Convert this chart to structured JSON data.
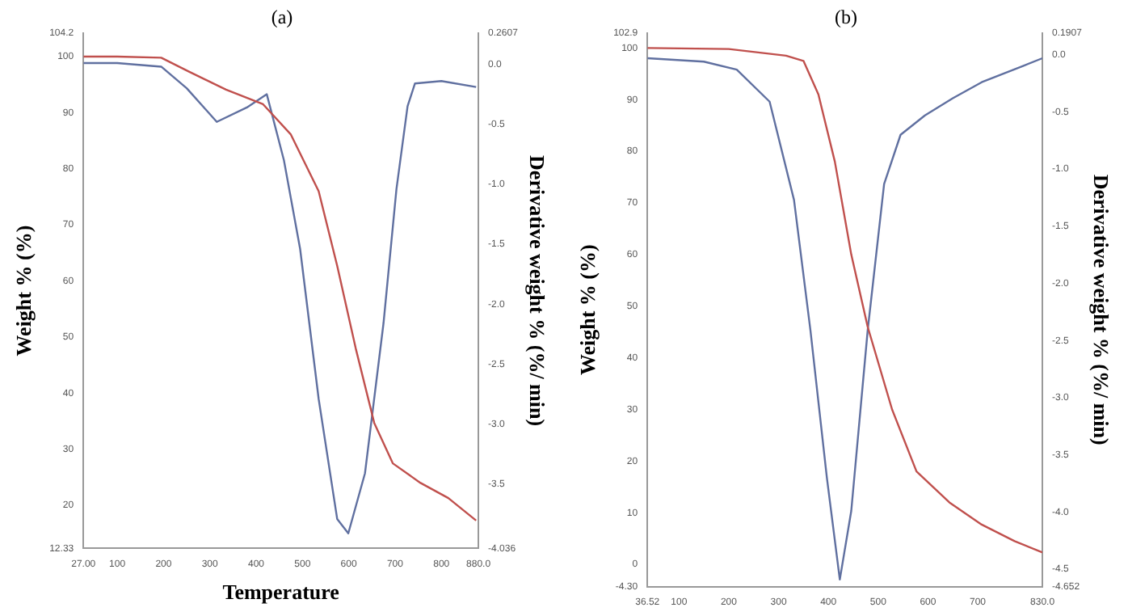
{
  "chart_data": [
    {
      "type": "line",
      "title": "(a)",
      "xlabel": "Temperature",
      "ylabel": "Weight % (%)",
      "y2label": "Derivative weight % (%/ min)",
      "grid": false,
      "legend": false,
      "marker": "none",
      "line_style": "solid",
      "xlim": [
        27,
        880
      ],
      "xticks": [
        {
          "value": 27,
          "label": "27.00"
        },
        100,
        200,
        300,
        400,
        500,
        600,
        700,
        800,
        {
          "value": 880,
          "label": "880.0"
        }
      ],
      "ylim": [
        12.33,
        104.2
      ],
      "yticks": [
        {
          "value": 12.33,
          "label": "12.33"
        },
        20,
        30,
        40,
        50,
        60,
        70,
        80,
        90,
        100,
        {
          "value": 104.2,
          "label": "104.2"
        }
      ],
      "y2lim": [
        -4.036,
        0.2607
      ],
      "y2ticks": [
        {
          "value": -4.036,
          "label": "-4.036"
        },
        -3.5,
        {
          "value": -3,
          "label": "-3.0"
        },
        -2.5,
        {
          "value": -2,
          "label": "-2.0"
        },
        -1.5,
        {
          "value": -1,
          "label": "-1.0"
        },
        -0.5,
        {
          "value": 0,
          "label": "0.0"
        },
        {
          "value": 0.2607,
          "label": "0.2607"
        }
      ],
      "series": [
        {
          "color": "#c0504d",
          "x": [
            27,
            100,
            195,
            255,
            335,
            415,
            475,
            535,
            575,
            615,
            655,
            695,
            755,
            815,
            875
          ],
          "values": [
            100,
            100,
            99.8,
            97.3,
            94.1,
            91.5,
            86.1,
            76,
            62.7,
            48,
            34.7,
            27.5,
            24,
            21.3,
            17.3
          ]
        },
        {
          "color": "#6070a0",
          "axis": "y2",
          "x": [
            27,
            100,
            195,
            250,
            315,
            380,
            423,
            460,
            495,
            535,
            575,
            599,
            635,
            675,
            703,
            727,
            743,
            800,
            875
          ],
          "values": [
            0.01,
            0.01,
            -0.02,
            -0.2,
            -0.48,
            -0.36,
            -0.25,
            -0.8,
            -1.54,
            -2.79,
            -3.79,
            -3.91,
            -3.41,
            -2.16,
            -1.04,
            -0.35,
            -0.16,
            -0.14,
            -0.19
          ]
        }
      ]
    },
    {
      "type": "line",
      "title": "(b)",
      "ylabel": "Weight % (%)",
      "y2label": "Derivative weight % (%/ min)",
      "grid": false,
      "legend": false,
      "marker": "none",
      "line_style": "solid",
      "xlim": [
        36.52,
        830
      ],
      "xticks": [
        {
          "value": 36.52,
          "label": "36.52"
        },
        100,
        200,
        300,
        400,
        500,
        600,
        700,
        {
          "value": 830,
          "label": "830.0"
        }
      ],
      "ylim": [
        -4.3,
        102.9
      ],
      "yticks": [
        {
          "value": -4.3,
          "label": "-4.30"
        },
        0,
        10,
        20,
        30,
        40,
        50,
        60,
        70,
        80,
        90,
        100,
        {
          "value": 102.9,
          "label": "102.9"
        }
      ],
      "y2lim": [
        -4.652,
        0.1907
      ],
      "y2ticks": [
        {
          "value": -4.652,
          "label": "-4.652"
        },
        -4.5,
        {
          "value": -4,
          "label": "-4.0"
        },
        -3.5,
        {
          "value": -3,
          "label": "-3.0"
        },
        -2.5,
        {
          "value": -2,
          "label": "-2.0"
        },
        -1.5,
        {
          "value": -1,
          "label": "-1.0"
        },
        -0.5,
        {
          "value": 0,
          "label": "0.0"
        },
        {
          "value": 0.1907,
          "label": "0.1907"
        }
      ],
      "series": [
        {
          "color": "#c0504d",
          "x": [
            36.52,
            200,
            315,
            350,
            380,
            413,
            446,
            479,
            528,
            577,
            643,
            708,
            774,
            830
          ],
          "values": [
            100,
            99.8,
            98.5,
            97.5,
            91,
            78,
            60,
            46,
            30,
            18,
            12,
            7.7,
            4.5,
            2.3
          ]
        },
        {
          "color": "#6070a0",
          "axis": "y2",
          "x": [
            36.52,
            150,
            216,
            282,
            331,
            364,
            397,
            423,
            446,
            479,
            512,
            545,
            594,
            650,
            708,
            790,
            830
          ],
          "values": [
            -0.03,
            -0.06,
            -0.13,
            -0.41,
            -1.27,
            -2.41,
            -3.7,
            -4.59,
            -3.99,
            -2.41,
            -1.13,
            -0.7,
            -0.53,
            -0.38,
            -0.24,
            -0.1,
            -0.03
          ]
        }
      ]
    }
  ]
}
